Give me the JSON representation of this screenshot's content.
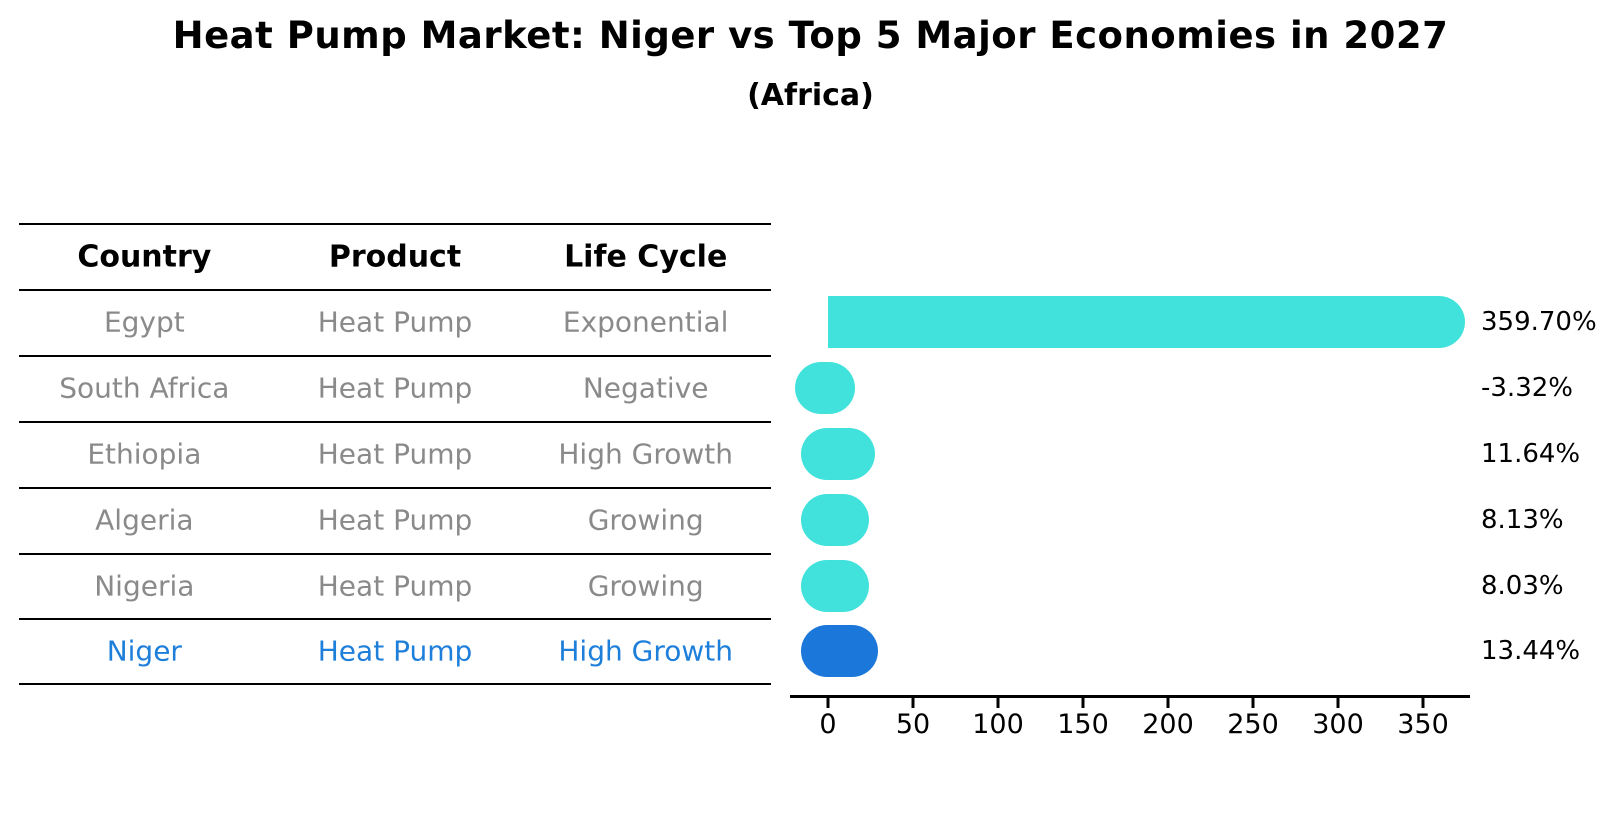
{
  "title": "Heat Pump Market: Niger vs Top 5 Major Economies in 2027",
  "subtitle": "(Africa)",
  "table": {
    "headers": [
      "Country",
      "Product",
      "Life Cycle"
    ],
    "rows": [
      {
        "country": "Egypt",
        "product": "Heat Pump",
        "life_cycle": "Exponential",
        "highlight": false
      },
      {
        "country": "South Africa",
        "product": "Heat Pump",
        "life_cycle": "Negative",
        "highlight": false
      },
      {
        "country": "Ethiopia",
        "product": "Heat Pump",
        "life_cycle": "High Growth",
        "highlight": false
      },
      {
        "country": "Algeria",
        "product": "Heat Pump",
        "life_cycle": "Growing",
        "highlight": false
      },
      {
        "country": "Nigeria",
        "product": "Heat Pump",
        "life_cycle": "Growing",
        "highlight": false
      },
      {
        "country": "Niger",
        "product": "Heat Pump",
        "life_cycle": "High Growth",
        "highlight": true
      }
    ]
  },
  "chart_data": {
    "type": "bar",
    "orientation": "horizontal",
    "title": "Heat Pump Market: Niger vs Top 5 Major Economies in 2027",
    "subtitle": "(Africa)",
    "categories": [
      "Egypt",
      "South Africa",
      "Ethiopia",
      "Algeria",
      "Nigeria",
      "Niger"
    ],
    "values": [
      359.7,
      -3.32,
      11.64,
      8.13,
      8.03,
      13.44
    ],
    "value_labels": [
      "359.70%",
      "-3.32%",
      "11.64%",
      "8.13%",
      "8.03%",
      "13.44%"
    ],
    "highlight_index": 5,
    "x_ticks": [
      0,
      50,
      100,
      150,
      200,
      250,
      300,
      350
    ],
    "xlim": [
      -22,
      378
    ],
    "grid": false,
    "legend": false
  },
  "colors": {
    "bar": "#40E2DB",
    "highlight_bar": "#1B77D9",
    "highlight_text": "#1E7FDB",
    "row_text": "#8a8a8a",
    "header_text": "#000000",
    "axis": "#000000"
  }
}
